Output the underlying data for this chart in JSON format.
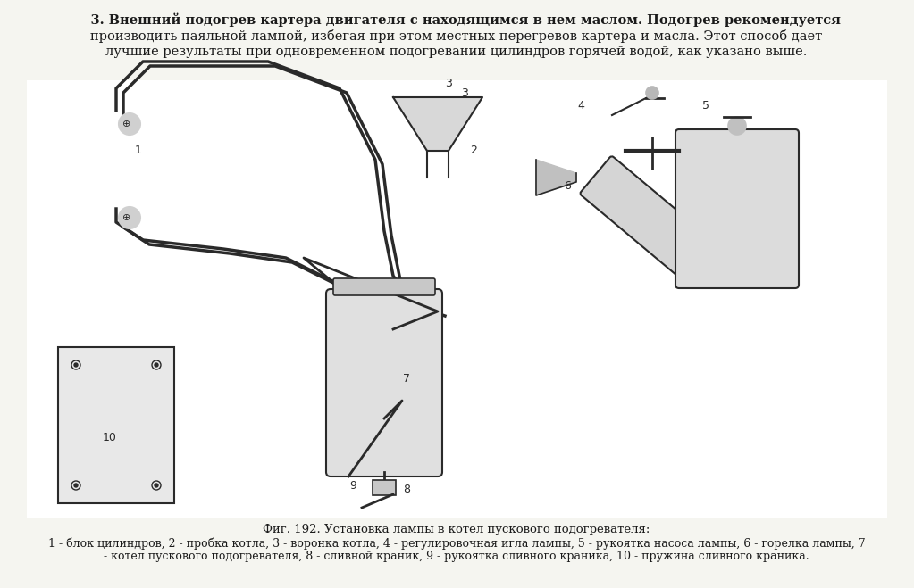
{
  "title_bold": "3. Внешний подогрев картера двигателя с находящимся в нем маслом.",
  "title_normal": " Подогрев рекомендуется производить паяльной лампой, избегая при этом местных перегревов картера и масла. Этот способ дает лучшие результаты при одновременном подогревании цилиндров горячей водой, как указано выше.",
  "caption_bold": "Фиг. 192. Установка лампы в котел пускового подогревателя:",
  "caption_normal": "1 - блок цилиндров, 2 - пробка котла, 3 - воронка котла, 4 - регулировочная игла лампы, 5 - рукоятка насоса лампы, 6 - горелка лампы, 7\n- котел пускового подогревателя, 8 - сливной краник, 9 - рукоятка сливного краника, 10 - пружина сливного краника.",
  "bg_color": "#f5f5f0",
  "text_color": "#1a1a1a",
  "fig_width": 10.23,
  "fig_height": 6.59,
  "dpi": 100
}
